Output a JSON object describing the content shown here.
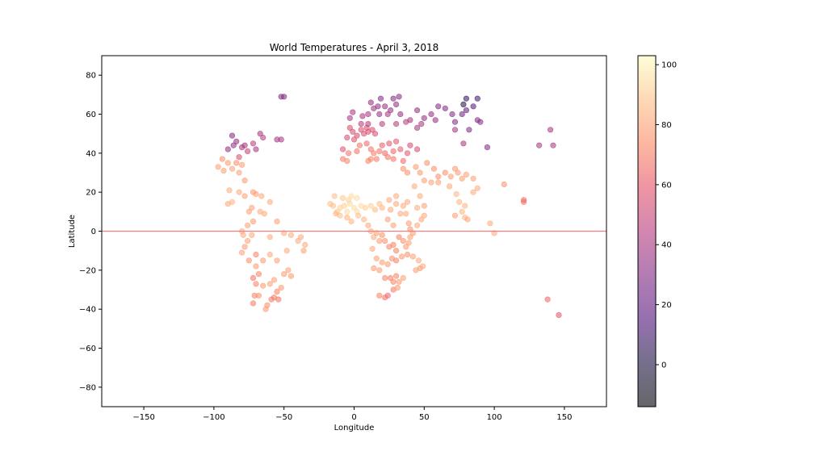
{
  "chart_data": {
    "type": "scatter",
    "title": "World Temperatures - April 3, 2018",
    "xlabel": "Longitude",
    "ylabel": "Latitude",
    "xlim": [
      -180,
      180
    ],
    "ylim": [
      -90,
      90
    ],
    "xticks": [
      -150,
      -100,
      -50,
      0,
      50,
      100,
      150
    ],
    "yticks": [
      -80,
      -60,
      -40,
      -20,
      0,
      20,
      40,
      60,
      80
    ],
    "reference_line": {
      "y": 0,
      "color": "#f08080"
    },
    "grid": false,
    "colorbar": {
      "colormap": "magma",
      "range": [
        -14,
        103
      ],
      "ticks": [
        0,
        20,
        40,
        60,
        80,
        100
      ]
    },
    "points": [
      [
        -52,
        69,
        30
      ],
      [
        -50,
        69,
        30
      ],
      [
        -87,
        49,
        30
      ],
      [
        -90,
        42,
        35
      ],
      [
        -84,
        46,
        35
      ],
      [
        -80,
        43,
        40
      ],
      [
        -72,
        45,
        45
      ],
      [
        -70,
        42,
        40
      ],
      [
        -67,
        50,
        40
      ],
      [
        -65,
        48,
        45
      ],
      [
        -55,
        47,
        40
      ],
      [
        -52,
        47,
        40
      ],
      [
        -76,
        41,
        50
      ],
      [
        -82,
        38,
        55
      ],
      [
        -78,
        44,
        40
      ],
      [
        -86,
        44,
        35
      ],
      [
        -97,
        33,
        80
      ],
      [
        -94,
        37,
        75
      ],
      [
        -90,
        35,
        78
      ],
      [
        -87,
        32,
        80
      ],
      [
        -93,
        31,
        80
      ],
      [
        -82,
        30,
        80
      ],
      [
        -84,
        35,
        75
      ],
      [
        -78,
        26,
        78
      ],
      [
        -82,
        20,
        82
      ],
      [
        -89,
        21,
        82
      ],
      [
        -87,
        15,
        85
      ],
      [
        -90,
        14,
        82
      ],
      [
        -78,
        18,
        80
      ],
      [
        -80,
        34,
        78
      ],
      [
        -72,
        20,
        78
      ],
      [
        -70,
        19,
        80
      ],
      [
        -66,
        18,
        82
      ],
      [
        -60,
        15,
        82
      ],
      [
        -75,
        10,
        80
      ],
      [
        -73,
        12,
        80
      ],
      [
        -67,
        10,
        82
      ],
      [
        -64,
        9,
        82
      ],
      [
        -72,
        5,
        78
      ],
      [
        -76,
        3,
        80
      ],
      [
        -80,
        0,
        82
      ],
      [
        -79,
        -2,
        82
      ],
      [
        -76,
        -5,
        80
      ],
      [
        -73,
        -2,
        82
      ],
      [
        -60,
        -3,
        82
      ],
      [
        -55,
        5,
        80
      ],
      [
        -50,
        -1,
        82
      ],
      [
        -45,
        -2,
        82
      ],
      [
        -40,
        -5,
        82
      ],
      [
        -38,
        -3,
        82
      ],
      [
        -35,
        -7,
        82
      ],
      [
        -36,
        -10,
        80
      ],
      [
        -48,
        -10,
        82
      ],
      [
        -55,
        -15,
        80
      ],
      [
        -60,
        -12,
        82
      ],
      [
        -65,
        -15,
        78
      ],
      [
        -70,
        -12,
        72
      ],
      [
        -75,
        -15,
        75
      ],
      [
        -78,
        -8,
        78
      ],
      [
        -80,
        -11,
        80
      ],
      [
        -70,
        -18,
        78
      ],
      [
        -68,
        -22,
        72
      ],
      [
        -72,
        -24,
        68
      ],
      [
        -70,
        -27,
        72
      ],
      [
        -65,
        -28,
        78
      ],
      [
        -60,
        -27,
        80
      ],
      [
        -57,
        -25,
        80
      ],
      [
        -50,
        -22,
        78
      ],
      [
        -47,
        -20,
        80
      ],
      [
        -45,
        -23,
        78
      ],
      [
        -52,
        -29,
        78
      ],
      [
        -55,
        -31,
        72
      ],
      [
        -57,
        -34,
        70
      ],
      [
        -59,
        -35,
        70
      ],
      [
        -54,
        -35,
        68
      ],
      [
        -62,
        -38,
        75
      ],
      [
        -63,
        -40,
        78
      ],
      [
        -68,
        -33,
        75
      ],
      [
        -71,
        -33,
        72
      ],
      [
        -72,
        -37,
        70
      ],
      [
        -5,
        48,
        55
      ],
      [
        -3,
        53,
        55
      ],
      [
        -1,
        51,
        55
      ],
      [
        2,
        49,
        55
      ],
      [
        5,
        52,
        55
      ],
      [
        0,
        47,
        58
      ],
      [
        7,
        50,
        55
      ],
      [
        9,
        53,
        55
      ],
      [
        10,
        51,
        55
      ],
      [
        13,
        52,
        55
      ],
      [
        15,
        50,
        55
      ],
      [
        -8,
        42,
        58
      ],
      [
        -4,
        40,
        68
      ],
      [
        -8,
        37,
        70
      ],
      [
        -5,
        36,
        72
      ],
      [
        2,
        41,
        68
      ],
      [
        4,
        44,
        68
      ],
      [
        9,
        45,
        65
      ],
      [
        12,
        42,
        68
      ],
      [
        -1,
        61,
        40
      ],
      [
        -3,
        58,
        40
      ],
      [
        6,
        59,
        40
      ],
      [
        5,
        55,
        45
      ],
      [
        10,
        55,
        45
      ],
      [
        10,
        60,
        40
      ],
      [
        14,
        63,
        38
      ],
      [
        12,
        66,
        35
      ],
      [
        17,
        64,
        35
      ],
      [
        18,
        60,
        35
      ],
      [
        20,
        55,
        45
      ],
      [
        19,
        68,
        30
      ],
      [
        22,
        64,
        35
      ],
      [
        24,
        60,
        40
      ],
      [
        26,
        62,
        35
      ],
      [
        28,
        68,
        30
      ],
      [
        30,
        65,
        35
      ],
      [
        32,
        69,
        30
      ],
      [
        33,
        60,
        35
      ],
      [
        30,
        55,
        45
      ],
      [
        37,
        56,
        45
      ],
      [
        40,
        57,
        40
      ],
      [
        45,
        53,
        40
      ],
      [
        48,
        55,
        40
      ],
      [
        50,
        58,
        35
      ],
      [
        45,
        62,
        35
      ],
      [
        55,
        60,
        35
      ],
      [
        58,
        57,
        35
      ],
      [
        60,
        64,
        30
      ],
      [
        65,
        63,
        30
      ],
      [
        70,
        60,
        30
      ],
      [
        72,
        56,
        30
      ],
      [
        77,
        60,
        25
      ],
      [
        80,
        62,
        20
      ],
      [
        85,
        64,
        15
      ],
      [
        88,
        68,
        10
      ],
      [
        80,
        68,
        5
      ],
      [
        78,
        65,
        0
      ],
      [
        82,
        52,
        30
      ],
      [
        88,
        57,
        30
      ],
      [
        90,
        56,
        30
      ],
      [
        95,
        43,
        30
      ],
      [
        132,
        44,
        40
      ],
      [
        140,
        52,
        40
      ],
      [
        142,
        44,
        40
      ],
      [
        72,
        52,
        40
      ],
      [
        78,
        45,
        40
      ],
      [
        40,
        44,
        55
      ],
      [
        45,
        42,
        55
      ],
      [
        38,
        40,
        60
      ],
      [
        33,
        42,
        62
      ],
      [
        35,
        36,
        65
      ],
      [
        28,
        37,
        68
      ],
      [
        24,
        38,
        68
      ],
      [
        22,
        40,
        65
      ],
      [
        25,
        45,
        60
      ],
      [
        30,
        46,
        60
      ],
      [
        20,
        44,
        62
      ],
      [
        18,
        41,
        68
      ],
      [
        28,
        41,
        65
      ],
      [
        14,
        40,
        70
      ],
      [
        16,
        37,
        70
      ],
      [
        12,
        37,
        72
      ],
      [
        10,
        36,
        72
      ],
      [
        35,
        32,
        75
      ],
      [
        38,
        30,
        75
      ],
      [
        44,
        33,
        78
      ],
      [
        47,
        30,
        78
      ],
      [
        52,
        35,
        75
      ],
      [
        57,
        32,
        75
      ],
      [
        60,
        28,
        75
      ],
      [
        65,
        30,
        75
      ],
      [
        69,
        28,
        78
      ],
      [
        72,
        32,
        78
      ],
      [
        74,
        30,
        78
      ],
      [
        77,
        27,
        80
      ],
      [
        80,
        29,
        80
      ],
      [
        85,
        27,
        80
      ],
      [
        88,
        22,
        82
      ],
      [
        73,
        19,
        85
      ],
      [
        75,
        15,
        85
      ],
      [
        79,
        13,
        85
      ],
      [
        77,
        10,
        85
      ],
      [
        72,
        8,
        80
      ],
      [
        79,
        7,
        85
      ],
      [
        81,
        6,
        82
      ],
      [
        85,
        20,
        82
      ],
      [
        68,
        23,
        82
      ],
      [
        60,
        25,
        80
      ],
      [
        55,
        25,
        80
      ],
      [
        50,
        26,
        80
      ],
      [
        43,
        23,
        82
      ],
      [
        47,
        18,
        82
      ],
      [
        45,
        12,
        82
      ],
      [
        50,
        13,
        80
      ],
      [
        38,
        15,
        82
      ],
      [
        -15,
        13,
        88
      ],
      [
        -17,
        14,
        88
      ],
      [
        -12,
        10,
        90
      ],
      [
        -10,
        12,
        92
      ],
      [
        -7,
        13,
        92
      ],
      [
        -5,
        10,
        95
      ],
      [
        -3,
        14,
        95
      ],
      [
        0,
        12,
        95
      ],
      [
        2,
        10,
        95
      ],
      [
        5,
        13,
        95
      ],
      [
        8,
        12,
        92
      ],
      [
        12,
        13,
        92
      ],
      [
        15,
        11,
        88
      ],
      [
        18,
        14,
        88
      ],
      [
        -2,
        5,
        85
      ],
      [
        -5,
        7,
        85
      ],
      [
        3,
        8,
        88
      ],
      [
        7,
        6,
        85
      ],
      [
        -10,
        8,
        88
      ],
      [
        -13,
        9,
        85
      ],
      [
        -4,
        16,
        92
      ],
      [
        -2,
        18,
        95
      ],
      [
        2,
        17,
        95
      ],
      [
        -8,
        17,
        90
      ],
      [
        -14,
        18,
        88
      ],
      [
        20,
        12,
        85
      ],
      [
        25,
        16,
        82
      ],
      [
        30,
        14,
        82
      ],
      [
        33,
        9,
        82
      ],
      [
        37,
        9,
        82
      ],
      [
        39,
        4,
        78
      ],
      [
        40,
        1,
        75
      ],
      [
        42,
        -1,
        78
      ],
      [
        45,
        3,
        82
      ],
      [
        48,
        6,
        82
      ],
      [
        50,
        8,
        82
      ],
      [
        35,
        13,
        82
      ],
      [
        30,
        18,
        82
      ],
      [
        26,
        11,
        82
      ],
      [
        24,
        6,
        80
      ],
      [
        28,
        3,
        80
      ],
      [
        10,
        3,
        82
      ],
      [
        12,
        0,
        82
      ],
      [
        14,
        -3,
        82
      ],
      [
        16,
        -1,
        80
      ],
      [
        18,
        -5,
        78
      ],
      [
        20,
        -2,
        75
      ],
      [
        22,
        -5,
        75
      ],
      [
        25,
        -8,
        72
      ],
      [
        28,
        -7,
        72
      ],
      [
        30,
        -10,
        72
      ],
      [
        32,
        -3,
        72
      ],
      [
        35,
        -5,
        75
      ],
      [
        37,
        -8,
        78
      ],
      [
        39,
        -6,
        80
      ],
      [
        40,
        -3,
        80
      ],
      [
        38,
        -12,
        75
      ],
      [
        34,
        -13,
        78
      ],
      [
        30,
        -15,
        72
      ],
      [
        27,
        -14,
        75
      ],
      [
        24,
        -17,
        78
      ],
      [
        20,
        -16,
        80
      ],
      [
        16,
        -14,
        80
      ],
      [
        13,
        -9,
        82
      ],
      [
        14,
        -19,
        78
      ],
      [
        18,
        -20,
        78
      ],
      [
        22,
        -24,
        72
      ],
      [
        26,
        -24,
        70
      ],
      [
        28,
        -26,
        72
      ],
      [
        30,
        -23,
        72
      ],
      [
        32,
        -26,
        78
      ],
      [
        35,
        -24,
        80
      ],
      [
        28,
        -30,
        70
      ],
      [
        24,
        -33,
        65
      ],
      [
        22,
        -34,
        68
      ],
      [
        18,
        -33,
        72
      ],
      [
        31,
        -29,
        78
      ],
      [
        47,
        -19,
        78
      ],
      [
        44,
        -20,
        80
      ],
      [
        49,
        -18,
        82
      ],
      [
        46,
        -15,
        82
      ],
      [
        42,
        -13,
        80
      ],
      [
        97,
        4,
        82
      ],
      [
        100,
        -1,
        82
      ],
      [
        107,
        24,
        75
      ],
      [
        121,
        15,
        68
      ],
      [
        121,
        16,
        65
      ],
      [
        138,
        -35,
        65
      ],
      [
        146,
        -43,
        60
      ]
    ]
  }
}
